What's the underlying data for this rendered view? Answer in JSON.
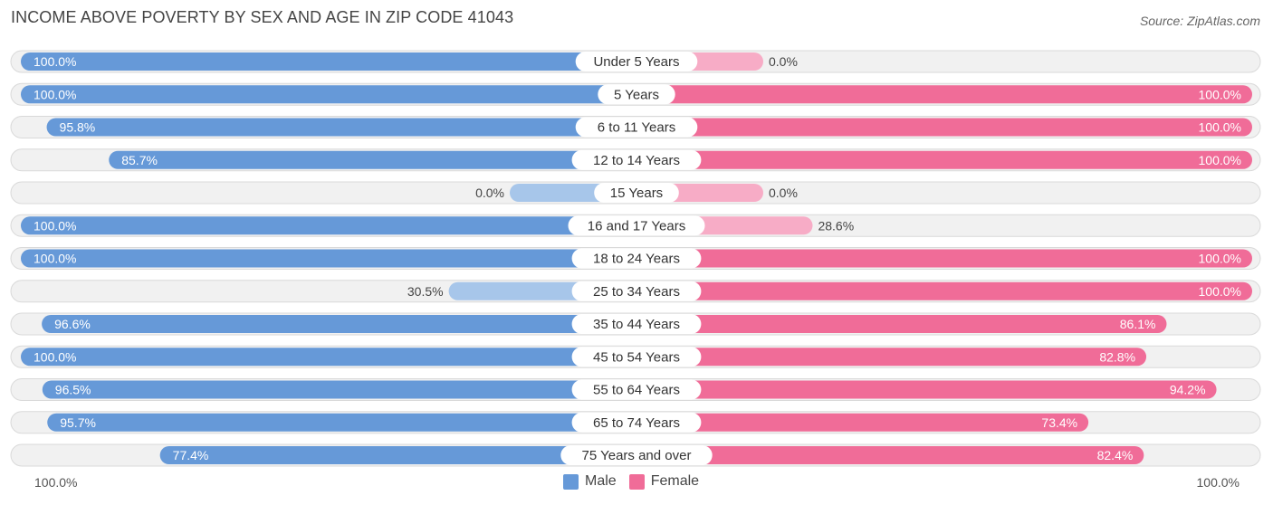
{
  "header": {
    "title": "INCOME ABOVE POVERTY BY SEX AND AGE IN ZIP CODE 41043",
    "source": "Source: ZipAtlas.com"
  },
  "legend": {
    "male_label": "Male",
    "female_label": "Female"
  },
  "axis": {
    "left_label": "100.0%",
    "right_label": "100.0%"
  },
  "colors": {
    "male_strong": "#6699d8",
    "male_light": "#a7c6ea",
    "female_strong": "#f06c98",
    "female_light": "#f7acc6",
    "row_bg": "#f1f1f1"
  },
  "chart_data": {
    "type": "bar",
    "title": "INCOME ABOVE POVERTY BY SEX AND AGE IN ZIP CODE 41043",
    "orientation": "horizontal-diverging",
    "categories": [
      "Under 5 Years",
      "5 Years",
      "6 to 11 Years",
      "12 to 14 Years",
      "15 Years",
      "16 and 17 Years",
      "18 to 24 Years",
      "25 to 34 Years",
      "35 to 44 Years",
      "45 to 54 Years",
      "55 to 64 Years",
      "65 to 74 Years",
      "75 Years and over"
    ],
    "series": [
      {
        "name": "Male",
        "values": [
          100.0,
          100.0,
          95.8,
          85.7,
          0.0,
          100.0,
          100.0,
          30.5,
          96.6,
          100.0,
          96.5,
          95.7,
          77.4
        ],
        "labels": [
          "100.0%",
          "100.0%",
          "95.8%",
          "85.7%",
          "0.0%",
          "100.0%",
          "100.0%",
          "30.5%",
          "96.6%",
          "100.0%",
          "96.5%",
          "95.7%",
          "77.4%"
        ]
      },
      {
        "name": "Female",
        "values": [
          0.0,
          100.0,
          100.0,
          100.0,
          0.0,
          28.6,
          100.0,
          100.0,
          86.1,
          82.8,
          94.2,
          73.4,
          82.4
        ],
        "labels": [
          "0.0%",
          "100.0%",
          "100.0%",
          "100.0%",
          "0.0%",
          "28.6%",
          "100.0%",
          "100.0%",
          "86.1%",
          "82.8%",
          "94.2%",
          "73.4%",
          "82.4%"
        ]
      }
    ],
    "xlim": [
      -100,
      100
    ],
    "xlabel_left": "100.0%",
    "xlabel_right": "100.0%",
    "legend_position": "bottom-center"
  }
}
